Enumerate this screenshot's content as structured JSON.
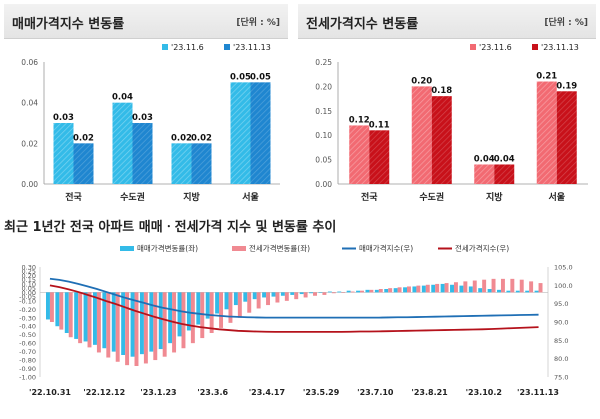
{
  "chart_data": [
    {
      "type": "bar",
      "title": "매매가격지수 변동률",
      "unit": "[단위 : %]",
      "categories": [
        "전국",
        "수도권",
        "지방",
        "서울"
      ],
      "series": [
        {
          "name": "'23.11.6",
          "values": [
            0.03,
            0.04,
            0.02,
            0.05
          ],
          "color": "#33bbe8"
        },
        {
          "name": "'23.11.13",
          "values": [
            0.02,
            0.03,
            0.02,
            0.05
          ],
          "color": "#1f86d0"
        }
      ],
      "data_labels": [
        [
          "0.03",
          "0.04",
          "0.02",
          "0.05"
        ],
        [
          "0.02",
          "0.03",
          "0.02",
          "0.05"
        ]
      ],
      "ylim": [
        0,
        0.06
      ],
      "yticks": [
        "0.00",
        "0.02",
        "0.04",
        "0.06"
      ],
      "legend": "top-right",
      "grid": false
    },
    {
      "type": "bar",
      "title": "전세가격지수 변동률",
      "unit": "[단위 : %]",
      "categories": [
        "전국",
        "수도권",
        "지방",
        "서울"
      ],
      "series": [
        {
          "name": "'23.11.6",
          "values": [
            0.12,
            0.2,
            0.04,
            0.21
          ],
          "color": "#f26a72"
        },
        {
          "name": "'23.11.13",
          "values": [
            0.11,
            0.18,
            0.04,
            0.19
          ],
          "color": "#c8111a"
        }
      ],
      "data_labels": [
        [
          "0.12",
          "0.20",
          "0.04",
          "0.21"
        ],
        [
          "0.11",
          "0.18",
          "0.04",
          "0.19"
        ]
      ],
      "ylim": [
        0,
        0.25
      ],
      "yticks": [
        "0.00",
        "0.05",
        "0.10",
        "0.15",
        "0.20",
        "0.25"
      ],
      "legend": "top-right",
      "grid": false
    },
    {
      "type": "bar",
      "title": "최근 1년간 전국 아파트 매매ㆍ전세가격 지수 및 변동률 추이",
      "x_ticks": [
        "'22.10.31",
        "'22.12.12",
        "'23.1.23",
        "'23.3.6",
        "'23.4.17",
        "'23.5.29",
        "'23.7.10",
        "'23.8.21",
        "'23.10.2",
        "'23.11.13"
      ],
      "series": [
        {
          "name": "매매가격변동률(좌)",
          "kind": "bar",
          "axis": "left",
          "color": "#33bbe8",
          "values": [
            -0.32,
            -0.4,
            -0.48,
            -0.55,
            -0.58,
            -0.62,
            -0.66,
            -0.7,
            -0.74,
            -0.76,
            -0.73,
            -0.7,
            -0.67,
            -0.6,
            -0.52,
            -0.45,
            -0.38,
            -0.31,
            -0.25,
            -0.2,
            -0.15,
            -0.11,
            -0.08,
            -0.06,
            -0.05,
            -0.04,
            -0.03,
            -0.02,
            -0.01,
            0.0,
            0.01,
            0.01,
            0.02,
            0.02,
            0.03,
            0.03,
            0.04,
            0.05,
            0.06,
            0.07,
            0.08,
            0.09,
            0.1,
            0.09,
            0.08,
            0.07,
            0.05,
            0.04,
            0.03,
            0.02,
            0.02,
            0.02,
            0.02
          ]
        },
        {
          "name": "전세가격변동률(좌)",
          "kind": "bar",
          "axis": "left",
          "color": "#f08a92",
          "values": [
            -0.35,
            -0.44,
            -0.53,
            -0.6,
            -0.65,
            -0.71,
            -0.77,
            -0.82,
            -0.86,
            -0.87,
            -0.84,
            -0.8,
            -0.76,
            -0.71,
            -0.66,
            -0.6,
            -0.54,
            -0.48,
            -0.42,
            -0.36,
            -0.3,
            -0.24,
            -0.19,
            -0.15,
            -0.12,
            -0.1,
            -0.08,
            -0.06,
            -0.04,
            -0.03,
            -0.01,
            0.0,
            0.01,
            0.02,
            0.03,
            0.04,
            0.05,
            0.06,
            0.07,
            0.08,
            0.09,
            0.1,
            0.11,
            0.12,
            0.13,
            0.14,
            0.15,
            0.16,
            0.16,
            0.16,
            0.15,
            0.13,
            0.11
          ]
        },
        {
          "name": "매매가격지수(우)",
          "kind": "line",
          "axis": "right",
          "color": "#1f6fb5",
          "values": [
            101.8,
            101.5,
            101.0,
            100.4,
            99.7,
            99.0,
            98.2,
            97.4,
            96.6,
            95.9,
            95.2,
            94.5,
            93.9,
            93.4,
            92.9,
            92.5,
            92.2,
            91.9,
            91.7,
            91.5,
            91.4,
            91.3,
            91.25,
            91.2,
            91.2,
            91.2,
            91.2,
            91.2,
            91.2,
            91.2,
            91.2,
            91.2,
            91.2,
            91.2,
            91.2,
            91.2,
            91.25,
            91.3,
            91.3,
            91.35,
            91.4,
            91.45,
            91.5,
            91.55,
            91.6,
            91.65,
            91.7,
            91.75,
            91.8,
            91.85,
            91.9,
            91.95,
            92.0
          ]
        },
        {
          "name": "전세가격지수(우)",
          "kind": "line",
          "axis": "right",
          "color": "#b5121b",
          "values": [
            100.0,
            99.5,
            98.9,
            98.2,
            97.4,
            96.6,
            95.7,
            94.9,
            94.0,
            93.1,
            92.3,
            91.5,
            90.8,
            90.1,
            89.5,
            89.0,
            88.6,
            88.3,
            88.0,
            87.8,
            87.6,
            87.5,
            87.4,
            87.35,
            87.3,
            87.3,
            87.3,
            87.3,
            87.3,
            87.3,
            87.3,
            87.3,
            87.35,
            87.4,
            87.4,
            87.45,
            87.5,
            87.55,
            87.6,
            87.65,
            87.7,
            87.75,
            87.8,
            87.85,
            87.9,
            87.95,
            88.0,
            88.1,
            88.2,
            88.3,
            88.4,
            88.5,
            88.6
          ]
        }
      ],
      "y_left_ticks": [
        "0.30",
        "0.25",
        "0.20",
        "0.15",
        "0.10",
        "0.05",
        "0.00",
        "-0.05",
        "-0.10",
        "-0.20",
        "-0.30",
        "-0.40",
        "-0.50",
        "-0.60",
        "-0.70",
        "-0.80",
        "-0.90",
        "-1.00"
      ],
      "y_left_lim": [
        -1.0,
        0.3
      ],
      "y_right_ticks": [
        "105.0",
        "100.0",
        "95.0",
        "90.0",
        "85.0",
        "80.0",
        "75.0"
      ],
      "y_right_lim": [
        75,
        105
      ],
      "legend": "top"
    }
  ]
}
